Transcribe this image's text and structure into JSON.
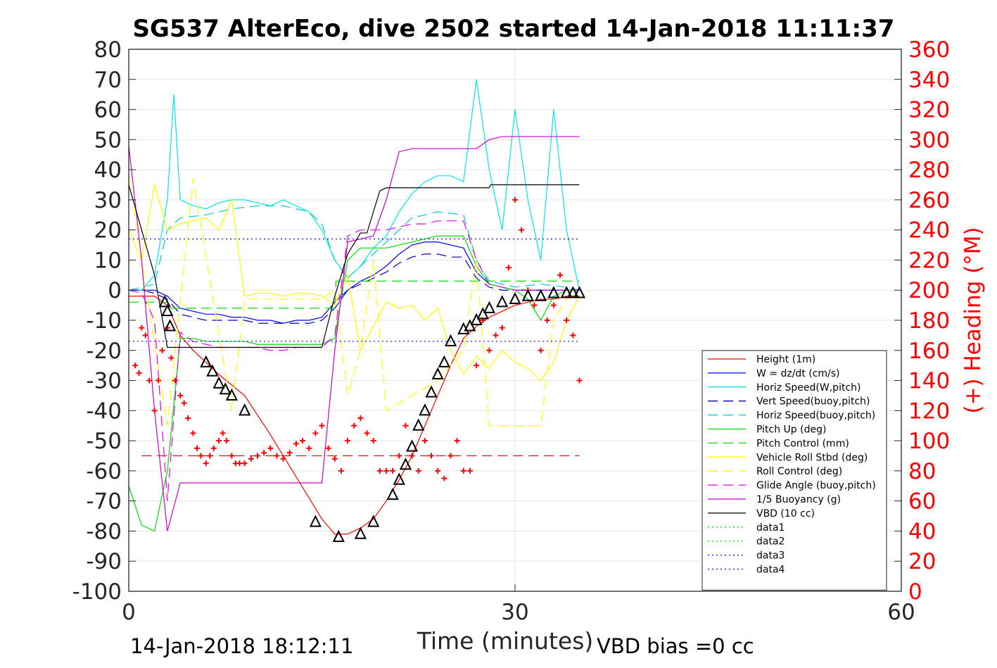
{
  "chart_data": {
    "type": "line",
    "title": "SG537 AlterEco, dive 2502 started 14-Jan-2018 11:11:37",
    "xlabel": "Time (minutes)",
    "ylabel_right": "(+) Heading (°M)",
    "footer_left": "14-Jan-2018 18:12:11",
    "footer_right": "VBD bias =0 cc",
    "xlim": [
      0,
      60
    ],
    "ylim": [
      -100,
      80
    ],
    "ylim_right": [
      0,
      360
    ],
    "x_ticks": [
      "0",
      "30",
      "60"
    ],
    "y_ticks": [
      "80",
      "70",
      "60",
      "50",
      "40",
      "30",
      "20",
      "10",
      "0",
      "-10",
      "-20",
      "-30",
      "-40",
      "-50",
      "-60",
      "-70",
      "-80",
      "-90",
      "-100"
    ],
    "y_ticks_right": [
      "360",
      "340",
      "320",
      "300",
      "280",
      "260",
      "240",
      "220",
      "200",
      "180",
      "160",
      "140",
      "120",
      "100",
      "80",
      "60",
      "40",
      "20",
      "0"
    ],
    "grid": true,
    "legend_position": "bottom-right",
    "colors": {
      "right_axis": "#ff0000",
      "frame": "#262626"
    },
    "series": [
      {
        "name": "Height (1m)",
        "color": "#ff0000",
        "style": "solid",
        "x": [
          0,
          1,
          2,
          3,
          4,
          5,
          7,
          9,
          11,
          13,
          15,
          16,
          17,
          18,
          19,
          20,
          21,
          22,
          23,
          24,
          25,
          26,
          27,
          28,
          29,
          30,
          31,
          32,
          33,
          34,
          35
        ],
        "y": [
          -2,
          -2,
          -2,
          -5,
          -15,
          -20,
          -28,
          -35,
          -48,
          -62,
          -76,
          -81,
          -81,
          -79,
          -76,
          -70,
          -63,
          -55,
          -45,
          -35,
          -25,
          -16,
          -12,
          -9,
          -7,
          -5,
          -4,
          -3,
          -3,
          -2,
          -2
        ]
      },
      {
        "name": "W = dz/dt (cm/s)",
        "color": "#0000ff",
        "style": "solid",
        "x": [
          0,
          1,
          2,
          3,
          4,
          5,
          6,
          7,
          8,
          9,
          10,
          11,
          12,
          13,
          14,
          15,
          16,
          17,
          18,
          19,
          20,
          21,
          22,
          23,
          24,
          25,
          26,
          27,
          28,
          29,
          30,
          31,
          32,
          33,
          34,
          35
        ],
        "y": [
          0,
          0,
          0,
          -2,
          -6,
          -7,
          -8,
          -8,
          -9,
          -9,
          -10,
          -10,
          -11,
          -10,
          -10,
          -9,
          -4,
          0,
          3,
          5,
          8,
          12,
          15,
          16,
          16,
          15,
          14,
          6,
          2,
          1,
          0,
          0,
          0,
          0,
          0,
          0
        ]
      },
      {
        "name": "Horiz Speed(W,pitch)",
        "color": "#00e6e6",
        "style": "solid",
        "x": [
          0,
          1,
          2,
          3,
          3.5,
          4,
          5,
          6,
          7,
          8,
          9,
          10,
          11,
          12,
          13,
          14,
          15,
          16,
          17,
          18,
          19,
          20,
          21,
          22,
          23,
          24,
          25,
          26,
          27,
          28,
          29,
          30,
          31,
          32,
          33,
          34,
          35
        ],
        "y": [
          0,
          0,
          5,
          30,
          65,
          30,
          28,
          27,
          29,
          30,
          30,
          29,
          28,
          30,
          28,
          26,
          20,
          10,
          4,
          8,
          14,
          18,
          26,
          32,
          36,
          38,
          38,
          36,
          70,
          40,
          20,
          60,
          30,
          10,
          60,
          20,
          0
        ]
      },
      {
        "name": "Vert Speed(buoy,pitch)",
        "color": "#0000b3",
        "style": "dashed",
        "x": [
          0,
          1,
          2,
          3,
          4,
          5,
          6,
          7,
          8,
          9,
          10,
          11,
          12,
          13,
          14,
          15,
          16,
          17,
          18,
          19,
          20,
          21,
          22,
          23,
          24,
          25,
          26,
          27,
          28,
          29,
          30,
          31,
          32,
          33,
          34,
          35
        ],
        "y": [
          0,
          0,
          -1,
          -3,
          -8,
          -9,
          -10,
          -10,
          -10,
          -10,
          -11,
          -11,
          -11,
          -11,
          -11,
          -10,
          -6,
          0,
          2,
          4,
          6,
          9,
          11,
          12,
          12,
          11,
          11,
          4,
          1,
          0,
          0,
          0,
          0,
          0,
          0,
          0
        ]
      },
      {
        "name": "Horiz Speed(buoy,pitch)",
        "color": "#00cccc",
        "style": "dashed",
        "x": [
          0,
          2,
          3,
          4,
          6,
          8,
          10,
          12,
          14,
          15,
          16,
          17,
          18,
          20,
          22,
          24,
          26,
          27,
          28,
          30,
          32,
          34,
          35
        ],
        "y": [
          0,
          2,
          20,
          24,
          25,
          27,
          28,
          28,
          26,
          22,
          10,
          4,
          8,
          16,
          24,
          26,
          25,
          10,
          3,
          1,
          2,
          1,
          0
        ]
      },
      {
        "name": "Pitch Up (deg)",
        "color": "#00dd00",
        "style": "solid",
        "x": [
          0,
          1,
          2,
          3,
          4,
          5,
          6,
          7,
          8,
          9,
          10,
          11,
          12,
          13,
          14,
          15,
          16,
          17,
          18,
          19,
          20,
          21,
          22,
          23,
          24,
          25,
          26,
          27,
          28,
          29,
          30,
          31,
          32,
          33,
          34,
          35
        ],
        "y": [
          -65,
          -78,
          -80,
          -60,
          -16,
          -16,
          -17,
          -17,
          -17,
          -17,
          -18,
          -18,
          -18,
          -18,
          -18,
          -18,
          -16,
          10,
          14,
          14,
          14,
          15,
          16,
          17,
          18,
          18,
          18,
          8,
          2,
          1,
          0,
          -3,
          -10,
          -2,
          0,
          0
        ]
      },
      {
        "name": "Pitch Control (mm)",
        "color": "#00dd00",
        "style": "dashed",
        "x": [
          0,
          3,
          3.1,
          16,
          16.1,
          35
        ],
        "y": [
          -4,
          -4,
          -6,
          -6,
          3,
          3
        ]
      },
      {
        "name": "Vehicle Roll Stbd (deg)",
        "color": "#ffff00",
        "style": "solid",
        "x": [
          0,
          1,
          2,
          3,
          4,
          5,
          6,
          7,
          8,
          9,
          10,
          11,
          12,
          13,
          14,
          15,
          16,
          17,
          18,
          19,
          20,
          21,
          22,
          23,
          24,
          25,
          26,
          27,
          28,
          29,
          30,
          31,
          32,
          33,
          34,
          35
        ],
        "y": [
          20,
          10,
          35,
          20,
          22,
          23,
          24,
          20,
          30,
          -2,
          -1,
          -1,
          -2,
          -1,
          -1,
          -2,
          -5,
          5,
          -20,
          -12,
          -4,
          -6,
          -5,
          -10,
          -6,
          -20,
          -28,
          -22,
          -26,
          -20,
          -24,
          -26,
          -30,
          -24,
          -10,
          -2
        ]
      },
      {
        "name": "Roll Control (deg)",
        "color": "#ffff00",
        "style": "dashed",
        "x": [
          0,
          3,
          5,
          8,
          9,
          12,
          15,
          16,
          17,
          18,
          19,
          20,
          22,
          24,
          26,
          27,
          28,
          30,
          32,
          33,
          34,
          35
        ],
        "y": [
          38,
          -45,
          37,
          -40,
          -3,
          -3,
          -3,
          0,
          -35,
          -20,
          10,
          -40,
          -35,
          -30,
          -20,
          10,
          -45,
          -45,
          -45,
          -10,
          -3,
          0
        ]
      },
      {
        "name": "Glide Angle (buoy,pitch)",
        "color": "#e600e6",
        "style": "dashed",
        "x": [
          0,
          1,
          2,
          3,
          4,
          5,
          6,
          7,
          8,
          9,
          10,
          11,
          12,
          13,
          14,
          15,
          16,
          17,
          18,
          19,
          20,
          21,
          22,
          23,
          24,
          25,
          26,
          27,
          28,
          29,
          30,
          31,
          32,
          33,
          34,
          35
        ],
        "y": [
          0,
          -1,
          -10,
          -70,
          -14,
          -17,
          -18,
          -19,
          -19,
          -19,
          -19,
          -20,
          -20,
          -19,
          -19,
          -19,
          -15,
          18,
          20,
          20,
          20,
          21,
          22,
          22,
          23,
          23,
          23,
          10,
          2,
          1,
          0,
          0,
          0,
          0,
          0,
          0
        ]
      },
      {
        "name": "1/5 Buoyancy (g)",
        "color": "#cc00cc",
        "style": "solid",
        "x": [
          0,
          1,
          2,
          3,
          4,
          5,
          10,
          14,
          15,
          16,
          17,
          18,
          19,
          20,
          21,
          22,
          23,
          24,
          25,
          26,
          27,
          28,
          29,
          30,
          31,
          32,
          33,
          34,
          35
        ],
        "y": [
          48,
          10,
          -40,
          -80,
          -64,
          -64,
          -64,
          -64,
          -64,
          -20,
          16,
          17,
          18,
          30,
          46,
          47,
          47,
          47,
          47,
          47,
          47,
          50,
          51,
          51,
          51,
          51,
          51,
          51,
          51
        ]
      },
      {
        "name": "VBD (10 cc)",
        "color": "#000000",
        "style": "solid",
        "x": [
          0,
          1,
          2,
          3,
          4,
          5,
          10,
          14,
          15,
          16,
          16.5,
          17,
          18,
          18.5,
          19,
          19.5,
          20,
          21,
          22,
          25,
          28,
          28.1,
          35
        ],
        "y": [
          35,
          20,
          5,
          -19,
          -19,
          -19,
          -19,
          -19,
          -19,
          -2,
          5,
          12,
          19,
          19,
          26,
          33,
          34,
          34,
          34,
          34,
          34,
          35,
          35
        ]
      },
      {
        "name": "data1",
        "color": "#00e600",
        "style": "dotted",
        "x": [
          0,
          35
        ],
        "y": [
          null,
          null
        ]
      },
      {
        "name": "data2",
        "color": "#00e600",
        "style": "dotted",
        "x": [
          0,
          35
        ],
        "y": [
          null,
          null
        ]
      },
      {
        "name": "data3",
        "color": "#0000ff",
        "style": "dotted",
        "x": [
          0,
          35
        ],
        "y": [
          17,
          17
        ]
      },
      {
        "name": "data4",
        "color": "#0000ff",
        "style": "dotted",
        "x": [
          0,
          35
        ],
        "y": [
          -17,
          -17
        ]
      }
    ],
    "extra_lines": [
      {
        "color": "#ff0000",
        "style": "dashed",
        "x": [
          1,
          35
        ],
        "y": [
          -55,
          -55
        ]
      }
    ],
    "heading_points": {
      "color": "#ff0000",
      "axis": "right",
      "x": [
        0.5,
        0.8,
        1,
        1.3,
        1.6,
        2,
        2.3,
        2.6,
        3,
        3.3,
        3.6,
        4,
        4.3,
        4.6,
        5,
        5.3,
        5.6,
        6,
        6.3,
        6.6,
        7,
        7.3,
        7.6,
        8,
        8.3,
        8.6,
        9,
        9.5,
        10,
        10.5,
        11,
        11.5,
        12,
        12.5,
        13,
        13.5,
        14,
        14.5,
        15,
        15.5,
        16,
        16.5,
        17,
        17.5,
        18,
        18.5,
        19,
        19.5,
        20,
        20.5,
        21,
        21.5,
        22,
        22.5,
        23,
        23.5,
        24,
        24.5,
        25,
        25.5,
        26,
        26.5,
        27,
        27.5,
        28,
        28.5,
        29,
        29.5,
        30,
        30.5,
        31,
        31.5,
        32,
        32.5,
        33,
        33.5,
        34,
        34.5,
        35
      ],
      "y": [
        150,
        145,
        175,
        170,
        140,
        120,
        140,
        160,
        175,
        155,
        140,
        130,
        125,
        115,
        105,
        95,
        90,
        85,
        90,
        95,
        100,
        105,
        100,
        90,
        85,
        85,
        85,
        88,
        90,
        92,
        95,
        90,
        88,
        92,
        98,
        100,
        95,
        105,
        110,
        95,
        88,
        80,
        100,
        110,
        115,
        105,
        100,
        80,
        80,
        80,
        90,
        110,
        90,
        80,
        100,
        90,
        80,
        75,
        90,
        100,
        80,
        80,
        150,
        180,
        160,
        170,
        175,
        215,
        260,
        240,
        200,
        190,
        160,
        180,
        190,
        210,
        180,
        170,
        140
      ]
    },
    "profile_markers": {
      "color": "#000000",
      "axis": "left",
      "x": [
        2.8,
        3,
        3.2,
        6,
        6.5,
        7,
        7.5,
        8,
        9,
        14.5,
        16.3,
        18,
        19,
        20.5,
        21,
        21.5,
        22,
        22.5,
        23,
        23.5,
        24,
        24.5,
        25,
        26,
        26.5,
        27,
        27.5,
        28,
        29,
        30,
        31,
        32,
        33,
        34,
        34.5,
        35
      ],
      "y": [
        -4,
        -7,
        -12,
        -24,
        -27,
        -31,
        -33,
        -35,
        -40,
        -77,
        -82,
        -81,
        -77,
        -68,
        -63,
        -58,
        -52,
        -45,
        -40,
        -34,
        -28,
        -24,
        -17,
        -13,
        -12,
        -10,
        -8,
        -6,
        -4,
        -3,
        -2,
        -2,
        -1,
        -1,
        -1,
        -1
      ]
    }
  }
}
